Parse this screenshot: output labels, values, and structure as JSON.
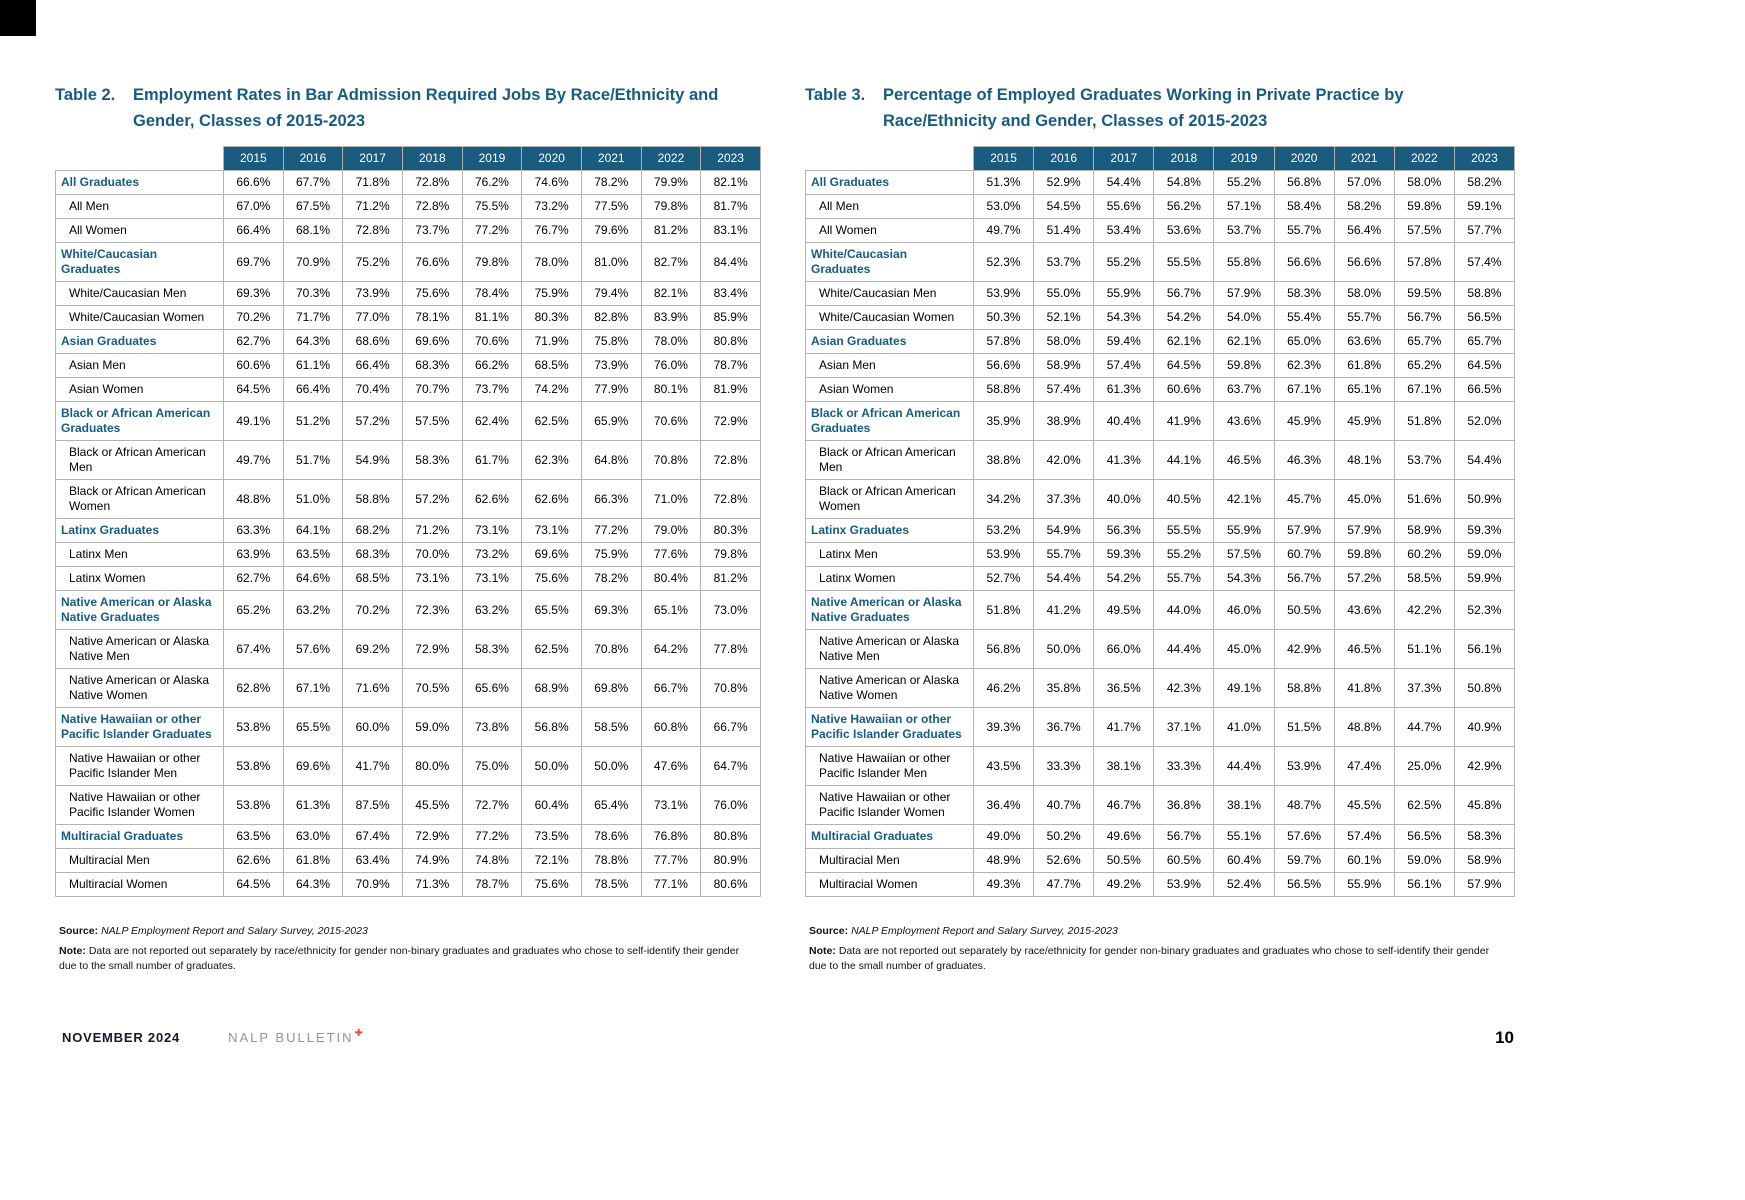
{
  "theme": {
    "brand-blue": "#175C82",
    "header-bg": "#1A5B80",
    "accent-red": "#E8503E",
    "border-gray": "#B3B3B3"
  },
  "footer": {
    "date": "NOVEMBER 2024",
    "brand": "NALP BULLETIN",
    "plus_glyph": "✚",
    "page_number": "10"
  },
  "tables": [
    {
      "label": "Table 2.",
      "title": "Employment Rates in Bar Admission Required Jobs By Race/Ethnicity and Gender, Classes of 2015-2023",
      "years": [
        "2015",
        "2016",
        "2017",
        "2018",
        "2019",
        "2020",
        "2021",
        "2022",
        "2023"
      ],
      "rows": [
        {
          "label": "All Graduates",
          "group": true,
          "values": [
            "66.6%",
            "67.7%",
            "71.8%",
            "72.8%",
            "76.2%",
            "74.6%",
            "78.2%",
            "79.9%",
            "82.1%"
          ]
        },
        {
          "label": "All Men",
          "group": false,
          "values": [
            "67.0%",
            "67.5%",
            "71.2%",
            "72.8%",
            "75.5%",
            "73.2%",
            "77.5%",
            "79.8%",
            "81.7%"
          ]
        },
        {
          "label": "All Women",
          "group": false,
          "values": [
            "66.4%",
            "68.1%",
            "72.8%",
            "73.7%",
            "77.2%",
            "76.7%",
            "79.6%",
            "81.2%",
            "83.1%"
          ]
        },
        {
          "label": "White/Caucasian Graduates",
          "group": true,
          "values": [
            "69.7%",
            "70.9%",
            "75.2%",
            "76.6%",
            "79.8%",
            "78.0%",
            "81.0%",
            "82.7%",
            "84.4%"
          ]
        },
        {
          "label": "White/Caucasian Men",
          "group": false,
          "values": [
            "69.3%",
            "70.3%",
            "73.9%",
            "75.6%",
            "78.4%",
            "75.9%",
            "79.4%",
            "82.1%",
            "83.4%"
          ]
        },
        {
          "label": "White/Caucasian Women",
          "group": false,
          "values": [
            "70.2%",
            "71.7%",
            "77.0%",
            "78.1%",
            "81.1%",
            "80.3%",
            "82.8%",
            "83.9%",
            "85.9%"
          ]
        },
        {
          "label": "Asian Graduates",
          "group": true,
          "values": [
            "62.7%",
            "64.3%",
            "68.6%",
            "69.6%",
            "70.6%",
            "71.9%",
            "75.8%",
            "78.0%",
            "80.8%"
          ]
        },
        {
          "label": "Asian Men",
          "group": false,
          "values": [
            "60.6%",
            "61.1%",
            "66.4%",
            "68.3%",
            "66.2%",
            "68.5%",
            "73.9%",
            "76.0%",
            "78.7%"
          ]
        },
        {
          "label": "Asian Women",
          "group": false,
          "values": [
            "64.5%",
            "66.4%",
            "70.4%",
            "70.7%",
            "73.7%",
            "74.2%",
            "77.9%",
            "80.1%",
            "81.9%"
          ]
        },
        {
          "label": "Black or African American Graduates",
          "group": true,
          "values": [
            "49.1%",
            "51.2%",
            "57.2%",
            "57.5%",
            "62.4%",
            "62.5%",
            "65.9%",
            "70.6%",
            "72.9%"
          ]
        },
        {
          "label": "Black or African American Men",
          "group": false,
          "values": [
            "49.7%",
            "51.7%",
            "54.9%",
            "58.3%",
            "61.7%",
            "62.3%",
            "64.8%",
            "70.8%",
            "72.8%"
          ]
        },
        {
          "label": "Black or African American Women",
          "group": false,
          "values": [
            "48.8%",
            "51.0%",
            "58.8%",
            "57.2%",
            "62.6%",
            "62.6%",
            "66.3%",
            "71.0%",
            "72.8%"
          ]
        },
        {
          "label": "Latinx Graduates",
          "group": true,
          "values": [
            "63.3%",
            "64.1%",
            "68.2%",
            "71.2%",
            "73.1%",
            "73.1%",
            "77.2%",
            "79.0%",
            "80.3%"
          ]
        },
        {
          "label": "Latinx Men",
          "group": false,
          "values": [
            "63.9%",
            "63.5%",
            "68.3%",
            "70.0%",
            "73.2%",
            "69.6%",
            "75.9%",
            "77.6%",
            "79.8%"
          ]
        },
        {
          "label": "Latinx Women",
          "group": false,
          "values": [
            "62.7%",
            "64.6%",
            "68.5%",
            "73.1%",
            "73.1%",
            "75.6%",
            "78.2%",
            "80.4%",
            "81.2%"
          ]
        },
        {
          "label": "Native American or Alaska Native Graduates",
          "group": true,
          "values": [
            "65.2%",
            "63.2%",
            "70.2%",
            "72.3%",
            "63.2%",
            "65.5%",
            "69.3%",
            "65.1%",
            "73.0%"
          ]
        },
        {
          "label": "Native American or Alaska Native Men",
          "group": false,
          "values": [
            "67.4%",
            "57.6%",
            "69.2%",
            "72.9%",
            "58.3%",
            "62.5%",
            "70.8%",
            "64.2%",
            "77.8%"
          ]
        },
        {
          "label": "Native American or Alaska Native Women",
          "group": false,
          "values": [
            "62.8%",
            "67.1%",
            "71.6%",
            "70.5%",
            "65.6%",
            "68.9%",
            "69.8%",
            "66.7%",
            "70.8%"
          ]
        },
        {
          "label": "Native Hawaiian or other Pacific Islander Graduates",
          "group": true,
          "values": [
            "53.8%",
            "65.5%",
            "60.0%",
            "59.0%",
            "73.8%",
            "56.8%",
            "58.5%",
            "60.8%",
            "66.7%"
          ]
        },
        {
          "label": "Native Hawaiian or other Pacific Islander Men",
          "group": false,
          "values": [
            "53.8%",
            "69.6%",
            "41.7%",
            "80.0%",
            "75.0%",
            "50.0%",
            "50.0%",
            "47.6%",
            "64.7%"
          ]
        },
        {
          "label": "Native Hawaiian or other Pacific Islander Women",
          "group": false,
          "values": [
            "53.8%",
            "61.3%",
            "87.5%",
            "45.5%",
            "72.7%",
            "60.4%",
            "65.4%",
            "73.1%",
            "76.0%"
          ]
        },
        {
          "label": "Multiracial Graduates",
          "group": true,
          "values": [
            "63.5%",
            "63.0%",
            "67.4%",
            "72.9%",
            "77.2%",
            "73.5%",
            "78.6%",
            "76.8%",
            "80.8%"
          ]
        },
        {
          "label": "Multiracial Men",
          "group": false,
          "values": [
            "62.6%",
            "61.8%",
            "63.4%",
            "74.9%",
            "74.8%",
            "72.1%",
            "78.8%",
            "77.7%",
            "80.9%"
          ]
        },
        {
          "label": "Multiracial Women",
          "group": false,
          "values": [
            "64.5%",
            "64.3%",
            "70.9%",
            "71.3%",
            "78.7%",
            "75.6%",
            "78.5%",
            "77.1%",
            "80.6%"
          ]
        }
      ],
      "source_label": "Source:",
      "source": "NALP Employment Report and Salary Survey, 2015-2023",
      "note_label": "Note:",
      "note": "Data are not reported out separately by race/ethnicity for gender non-binary graduates and graduates who chose to self-identify their gender due to the small number of graduates."
    },
    {
      "label": "Table 3.",
      "title": "Percentage of Employed Graduates Working in Private Practice by Race/Ethnicity and Gender, Classes of 2015-2023",
      "years": [
        "2015",
        "2016",
        "2017",
        "2018",
        "2019",
        "2020",
        "2021",
        "2022",
        "2023"
      ],
      "rows": [
        {
          "label": "All Graduates",
          "group": true,
          "values": [
            "51.3%",
            "52.9%",
            "54.4%",
            "54.8%",
            "55.2%",
            "56.8%",
            "57.0%",
            "58.0%",
            "58.2%"
          ]
        },
        {
          "label": "All Men",
          "group": false,
          "values": [
            "53.0%",
            "54.5%",
            "55.6%",
            "56.2%",
            "57.1%",
            "58.4%",
            "58.2%",
            "59.8%",
            "59.1%"
          ]
        },
        {
          "label": "All Women",
          "group": false,
          "values": [
            "49.7%",
            "51.4%",
            "53.4%",
            "53.6%",
            "53.7%",
            "55.7%",
            "56.4%",
            "57.5%",
            "57.7%"
          ]
        },
        {
          "label": "White/Caucasian Graduates",
          "group": true,
          "values": [
            "52.3%",
            "53.7%",
            "55.2%",
            "55.5%",
            "55.8%",
            "56.6%",
            "56.6%",
            "57.8%",
            "57.4%"
          ]
        },
        {
          "label": "White/Caucasian Men",
          "group": false,
          "values": [
            "53.9%",
            "55.0%",
            "55.9%",
            "56.7%",
            "57.9%",
            "58.3%",
            "58.0%",
            "59.5%",
            "58.8%"
          ]
        },
        {
          "label": "White/Caucasian Women",
          "group": false,
          "values": [
            "50.3%",
            "52.1%",
            "54.3%",
            "54.2%",
            "54.0%",
            "55.4%",
            "55.7%",
            "56.7%",
            "56.5%"
          ]
        },
        {
          "label": "Asian Graduates",
          "group": true,
          "values": [
            "57.8%",
            "58.0%",
            "59.4%",
            "62.1%",
            "62.1%",
            "65.0%",
            "63.6%",
            "65.7%",
            "65.7%"
          ]
        },
        {
          "label": "Asian Men",
          "group": false,
          "values": [
            "56.6%",
            "58.9%",
            "57.4%",
            "64.5%",
            "59.8%",
            "62.3%",
            "61.8%",
            "65.2%",
            "64.5%"
          ]
        },
        {
          "label": "Asian Women",
          "group": false,
          "values": [
            "58.8%",
            "57.4%",
            "61.3%",
            "60.6%",
            "63.7%",
            "67.1%",
            "65.1%",
            "67.1%",
            "66.5%"
          ]
        },
        {
          "label": "Black or African American Graduates",
          "group": true,
          "values": [
            "35.9%",
            "38.9%",
            "40.4%",
            "41.9%",
            "43.6%",
            "45.9%",
            "45.9%",
            "51.8%",
            "52.0%"
          ]
        },
        {
          "label": "Black or African American Men",
          "group": false,
          "values": [
            "38.8%",
            "42.0%",
            "41.3%",
            "44.1%",
            "46.5%",
            "46.3%",
            "48.1%",
            "53.7%",
            "54.4%"
          ]
        },
        {
          "label": "Black or African American Women",
          "group": false,
          "values": [
            "34.2%",
            "37.3%",
            "40.0%",
            "40.5%",
            "42.1%",
            "45.7%",
            "45.0%",
            "51.6%",
            "50.9%"
          ]
        },
        {
          "label": "Latinx Graduates",
          "group": true,
          "values": [
            "53.2%",
            "54.9%",
            "56.3%",
            "55.5%",
            "55.9%",
            "57.9%",
            "57.9%",
            "58.9%",
            "59.3%"
          ]
        },
        {
          "label": "Latinx Men",
          "group": false,
          "values": [
            "53.9%",
            "55.7%",
            "59.3%",
            "55.2%",
            "57.5%",
            "60.7%",
            "59.8%",
            "60.2%",
            "59.0%"
          ]
        },
        {
          "label": "Latinx Women",
          "group": false,
          "values": [
            "52.7%",
            "54.4%",
            "54.2%",
            "55.7%",
            "54.3%",
            "56.7%",
            "57.2%",
            "58.5%",
            "59.9%"
          ]
        },
        {
          "label": "Native American or Alaska Native Graduates",
          "group": true,
          "values": [
            "51.8%",
            "41.2%",
            "49.5%",
            "44.0%",
            "46.0%",
            "50.5%",
            "43.6%",
            "42.2%",
            "52.3%"
          ]
        },
        {
          "label": "Native American or Alaska Native Men",
          "group": false,
          "values": [
            "56.8%",
            "50.0%",
            "66.0%",
            "44.4%",
            "45.0%",
            "42.9%",
            "46.5%",
            "51.1%",
            "56.1%"
          ]
        },
        {
          "label": "Native American or Alaska Native Women",
          "group": false,
          "values": [
            "46.2%",
            "35.8%",
            "36.5%",
            "42.3%",
            "49.1%",
            "58.8%",
            "41.8%",
            "37.3%",
            "50.8%"
          ]
        },
        {
          "label": "Native Hawaiian or other Pacific Islander Graduates",
          "group": true,
          "values": [
            "39.3%",
            "36.7%",
            "41.7%",
            "37.1%",
            "41.0%",
            "51.5%",
            "48.8%",
            "44.7%",
            "40.9%"
          ]
        },
        {
          "label": "Native Hawaiian or other Pacific Islander Men",
          "group": false,
          "values": [
            "43.5%",
            "33.3%",
            "38.1%",
            "33.3%",
            "44.4%",
            "53.9%",
            "47.4%",
            "25.0%",
            "42.9%"
          ]
        },
        {
          "label": "Native Hawaiian or other Pacific Islander Women",
          "group": false,
          "values": [
            "36.4%",
            "40.7%",
            "46.7%",
            "36.8%",
            "38.1%",
            "48.7%",
            "45.5%",
            "62.5%",
            "45.8%"
          ]
        },
        {
          "label": "Multiracial Graduates",
          "group": true,
          "values": [
            "49.0%",
            "50.2%",
            "49.6%",
            "56.7%",
            "55.1%",
            "57.6%",
            "57.4%",
            "56.5%",
            "58.3%"
          ]
        },
        {
          "label": "Multiracial Men",
          "group": false,
          "values": [
            "48.9%",
            "52.6%",
            "50.5%",
            "60.5%",
            "60.4%",
            "59.7%",
            "60.1%",
            "59.0%",
            "58.9%"
          ]
        },
        {
          "label": "Multiracial Women",
          "group": false,
          "values": [
            "49.3%",
            "47.7%",
            "49.2%",
            "53.9%",
            "52.4%",
            "56.5%",
            "55.9%",
            "56.1%",
            "57.9%"
          ]
        }
      ],
      "source_label": "Source:",
      "source": "NALP Employment Report and Salary Survey, 2015-2023",
      "note_label": "Note:",
      "note": "Data are not reported out separately by race/ethnicity for gender non-binary graduates and graduates who chose to self-identify their gender due to the small number of graduates."
    }
  ]
}
